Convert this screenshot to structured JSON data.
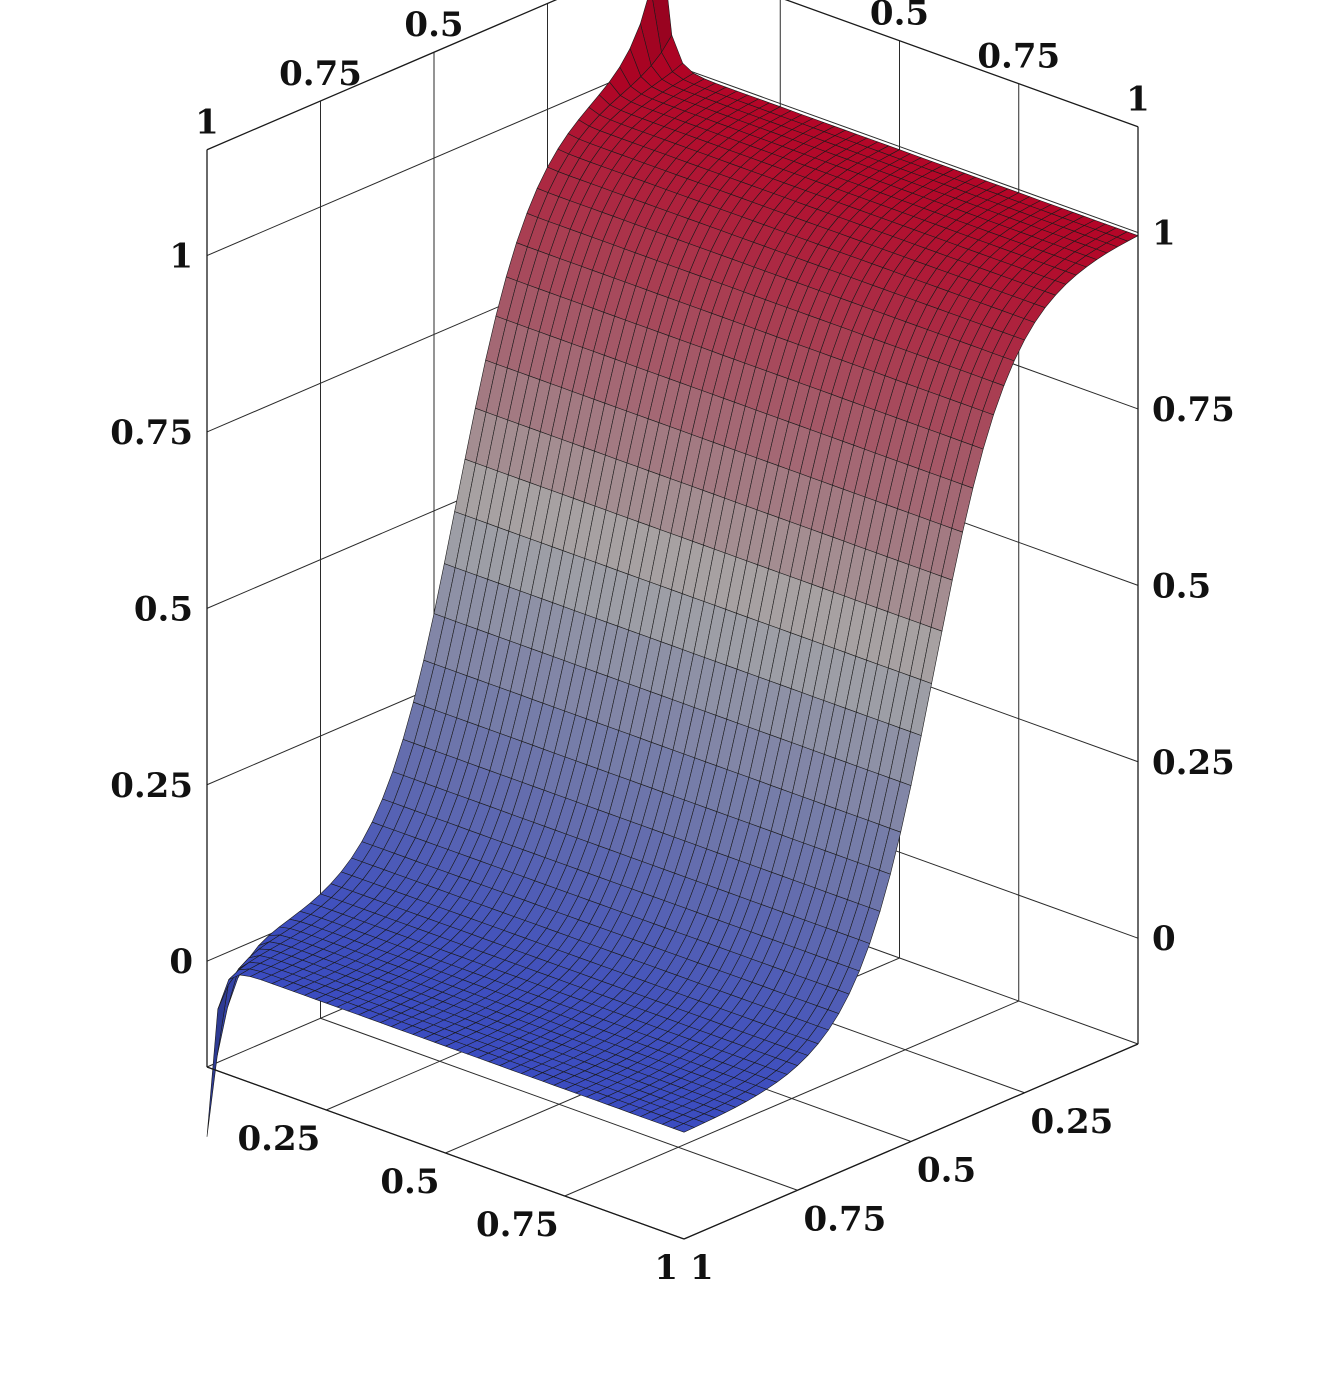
{
  "chart_data": {
    "type": "surface",
    "title": "",
    "xlabel": "",
    "ylabel": "",
    "zlabel": "",
    "x_range": [
      0,
      1
    ],
    "y_range": [
      0,
      1
    ],
    "z_range": [
      -0.15,
      1.15
    ],
    "colormap": [
      "#3b4cc0",
      "#dddddd",
      "#b40426"
    ],
    "grid": true,
    "function": "sigmoid step in y with sharp spikes along the y = 0 boundary",
    "z_ticks": [
      {
        "label": "0",
        "value": 0
      },
      {
        "label": "0.25",
        "value": 0.25
      },
      {
        "label": "0.5",
        "value": 0.5
      },
      {
        "label": "0.75",
        "value": 0.75
      },
      {
        "label": "1",
        "value": 1
      }
    ],
    "x_ticks": [
      {
        "label": "0.25",
        "value": 0.25
      },
      {
        "label": "0.5",
        "value": 0.5
      },
      {
        "label": "0.75",
        "value": 0.75
      },
      {
        "label": "1",
        "value": 1
      }
    ],
    "y_ticks": [
      {
        "label": "0.25",
        "value": 0.25
      },
      {
        "label": "0.5",
        "value": 0.5
      },
      {
        "label": "0.75",
        "value": 0.75
      },
      {
        "label": "1",
        "value": 1
      }
    ]
  }
}
